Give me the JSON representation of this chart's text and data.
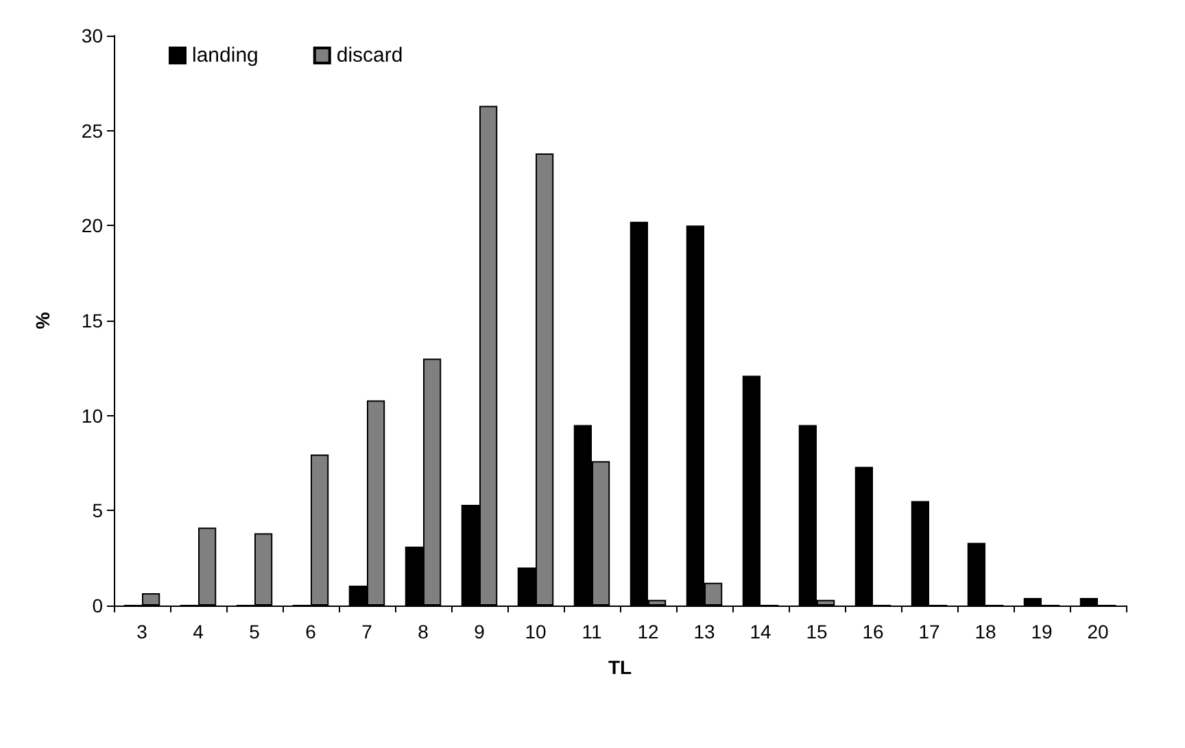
{
  "chart_data": {
    "type": "bar",
    "xlabel": "TL",
    "ylabel": "%",
    "categories": [
      "3",
      "4",
      "5",
      "6",
      "7",
      "8",
      "9",
      "10",
      "11",
      "12",
      "13",
      "14",
      "15",
      "16",
      "17",
      "18",
      "19",
      "20"
    ],
    "series": [
      {
        "name": "landing",
        "color": "#000000",
        "values": [
          0,
          0,
          0,
          0,
          1.05,
          3.1,
          5.3,
          2.0,
          9.5,
          20.2,
          20.0,
          12.1,
          9.5,
          7.3,
          5.5,
          3.3,
          0.4,
          0.4
        ]
      },
      {
        "name": "discard",
        "color": "#808080",
        "values": [
          0.65,
          4.1,
          3.8,
          7.95,
          10.8,
          13.0,
          26.3,
          23.8,
          7.6,
          0.3,
          1.2,
          0,
          0.3,
          0,
          0,
          0,
          0,
          0
        ]
      }
    ],
    "ylim": [
      0,
      30
    ],
    "yticks": [
      0,
      5,
      10,
      15,
      20,
      25,
      30
    ],
    "grid": false,
    "legend": "top left"
  }
}
